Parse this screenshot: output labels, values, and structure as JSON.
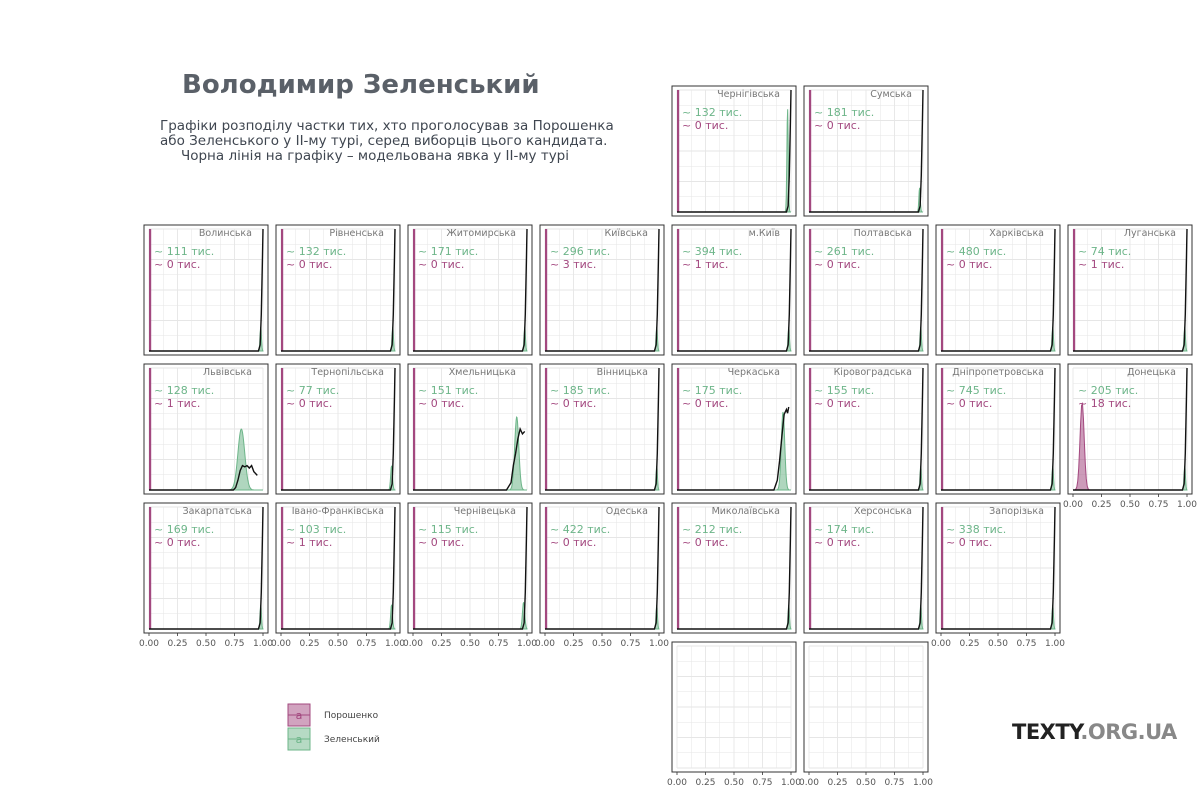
{
  "title": "Володимир Зеленський",
  "subtitle_lines": [
    "Графіки розподілу частки тих, хто проголосував за Порошенка",
    "або Зеленського у ІІ-му турі, серед виборців цього кандидата.",
    "Чорна лінія на графіку – модельована явка у ІІ-му турі"
  ],
  "brand": {
    "main": "TEXTY",
    "suffix": ".ORG.UA"
  },
  "colors": {
    "poroshenko": "#a3487f",
    "zelensky": "#6db589",
    "turnout": "#111111",
    "grid": "#e6e6e6",
    "panel_border": "#333333",
    "strip_text": "#777777"
  },
  "chart_data": {
    "type": "area",
    "facet_layout": "small multiples in a map-like grid of Ukrainian oblasts",
    "x_axis": {
      "ticks": [
        "0.00",
        "0.25",
        "0.50",
        "0.75",
        "1.00"
      ],
      "xlim": [
        0,
        1
      ]
    },
    "unit": "тис.",
    "legend": {
      "position": "bottom-left",
      "key_glyph": "a",
      "entries": [
        "Порошенко",
        "Зеленський"
      ]
    },
    "panels": [
      {
        "region": "Чернігівська",
        "zelensky": "~ 132  тис.",
        "poroshenko": "~ 0  тис.",
        "z_peak": 0.97,
        "z_sd": 0.006,
        "z_height": 0.85,
        "turnout": "steep"
      },
      {
        "region": "Сумська",
        "zelensky": "~ 181  тис.",
        "poroshenko": "~ 0  тис.",
        "z_peak": 0.97,
        "z_sd": 0.006,
        "z_height": 0.2,
        "turnout": "steep"
      },
      {
        "region": "Волинська",
        "zelensky": "~ 111  тис.",
        "poroshenko": "~ 0  тис.",
        "z_peak": 0.98,
        "z_sd": 0.006,
        "z_height": 0.2,
        "turnout": "steep"
      },
      {
        "region": "Рівненська",
        "zelensky": "~ 132  тис.",
        "poroshenko": "~ 0  тис.",
        "z_peak": 0.98,
        "z_sd": 0.006,
        "z_height": 0.2,
        "turnout": "steep"
      },
      {
        "region": "Житомирська",
        "zelensky": "~ 171  тис.",
        "poroshenko": "~ 0  тис.",
        "z_peak": 0.98,
        "z_sd": 0.006,
        "z_height": 0.2,
        "turnout": "steep"
      },
      {
        "region": "Київська",
        "zelensky": "~ 296  тис.",
        "poroshenko": "~ 3  тис.",
        "z_peak": 0.98,
        "z_sd": 0.006,
        "z_height": 0.2,
        "turnout": "steep"
      },
      {
        "region": "м.Київ",
        "zelensky": "~ 394  тис.",
        "poroshenko": "~ 1  тис.",
        "z_peak": 0.98,
        "z_sd": 0.006,
        "z_height": 0.2,
        "turnout": "steep"
      },
      {
        "region": "Полтавська",
        "zelensky": "~ 261  тис.",
        "poroshenko": "~ 0  тис.",
        "z_peak": 0.98,
        "z_sd": 0.006,
        "z_height": 0.2,
        "turnout": "steep"
      },
      {
        "region": "Харківська",
        "zelensky": "~ 480  тис.",
        "poroshenko": "~ 0  тис.",
        "z_peak": 0.98,
        "z_sd": 0.006,
        "z_height": 0.2,
        "turnout": "steep"
      },
      {
        "region": "Луганська",
        "zelensky": "~ 74  тис.",
        "poroshenko": "~ 1  тис.",
        "z_peak": 0.98,
        "z_sd": 0.006,
        "z_height": 0.2,
        "turnout": "steep"
      },
      {
        "region": "Львівська",
        "zelensky": "~ 128  тис.",
        "poroshenko": "~ 1  тис.",
        "z_peak": 0.81,
        "z_sd": 0.03,
        "z_height": 0.5,
        "turnout": "lviv"
      },
      {
        "region": "Тернопільська",
        "zelensky": "~ 77  тис.",
        "poroshenko": "~ 0  тис.",
        "z_peak": 0.97,
        "z_sd": 0.008,
        "z_height": 0.2,
        "turnout": "steep"
      },
      {
        "region": "Хмельницька",
        "zelensky": "~ 151  тис.",
        "poroshenko": "~ 0  тис.",
        "z_peak": 0.91,
        "z_sd": 0.018,
        "z_height": 0.6,
        "turnout": "khm"
      },
      {
        "region": "Вінницька",
        "zelensky": "~ 185  тис.",
        "poroshenko": "~ 0  тис.",
        "z_peak": 0.98,
        "z_sd": 0.006,
        "z_height": 0.2,
        "turnout": "steep"
      },
      {
        "region": "Черкаська",
        "zelensky": "~ 175  тис.",
        "poroshenko": "~ 0  тис.",
        "z_peak": 0.93,
        "z_sd": 0.015,
        "z_height": 0.64,
        "turnout": "cherk"
      },
      {
        "region": "Кіровоградська",
        "zelensky": "~ 155  тис.",
        "poroshenko": "~ 0  тис.",
        "z_peak": 0.98,
        "z_sd": 0.006,
        "z_height": 0.2,
        "turnout": "steep"
      },
      {
        "region": "Дніпропетровська",
        "zelensky": "~ 745  тис.",
        "poroshenko": "~ 0  тис.",
        "z_peak": 0.98,
        "z_sd": 0.006,
        "z_height": 0.2,
        "turnout": "steep"
      },
      {
        "region": "Донецька",
        "zelensky": "~ 205  тис.",
        "poroshenko": "~ 18  тис.",
        "z_peak": 0.98,
        "z_sd": 0.006,
        "z_height": 0.2,
        "turnout": "steep",
        "p_peak": 0.08,
        "p_sd": 0.018,
        "p_height": 0.72
      },
      {
        "region": "Закарпатська",
        "zelensky": "~ 169  тис.",
        "poroshenko": "~ 0  тис.",
        "z_peak": 0.98,
        "z_sd": 0.006,
        "z_height": 0.2,
        "turnout": "steep"
      },
      {
        "region": "Івано-Франківська",
        "zelensky": "~ 103  тис.",
        "poroshenko": "~ 1  тис.",
        "z_peak": 0.97,
        "z_sd": 0.008,
        "z_height": 0.2,
        "turnout": "steep"
      },
      {
        "region": "Чернівецька",
        "zelensky": "~ 115  тис.",
        "poroshenko": "~ 0  тис.",
        "z_peak": 0.97,
        "z_sd": 0.01,
        "z_height": 0.22,
        "turnout": "steep"
      },
      {
        "region": "Одеська",
        "zelensky": "~ 422  тис.",
        "poroshenko": "~ 0  тис.",
        "z_peak": 0.98,
        "z_sd": 0.006,
        "z_height": 0.2,
        "turnout": "steep"
      },
      {
        "region": "Миколаївська",
        "zelensky": "~ 212  тис.",
        "poroshenko": "~ 0  тис.",
        "z_peak": 0.98,
        "z_sd": 0.006,
        "z_height": 0.2,
        "turnout": "steep"
      },
      {
        "region": "Херсонська",
        "zelensky": "~ 174  тис.",
        "poroshenko": "~ 0  тис.",
        "z_peak": 0.98,
        "z_sd": 0.006,
        "z_height": 0.2,
        "turnout": "steep"
      },
      {
        "region": "Запорізька",
        "zelensky": "~ 338  тис.",
        "poroshenko": "~ 0  тис.",
        "z_peak": 0.98,
        "z_sd": 0.006,
        "z_height": 0.2,
        "turnout": "steep"
      },
      {
        "region": "",
        "empty": true
      },
      {
        "region": "",
        "empty": true
      }
    ]
  }
}
